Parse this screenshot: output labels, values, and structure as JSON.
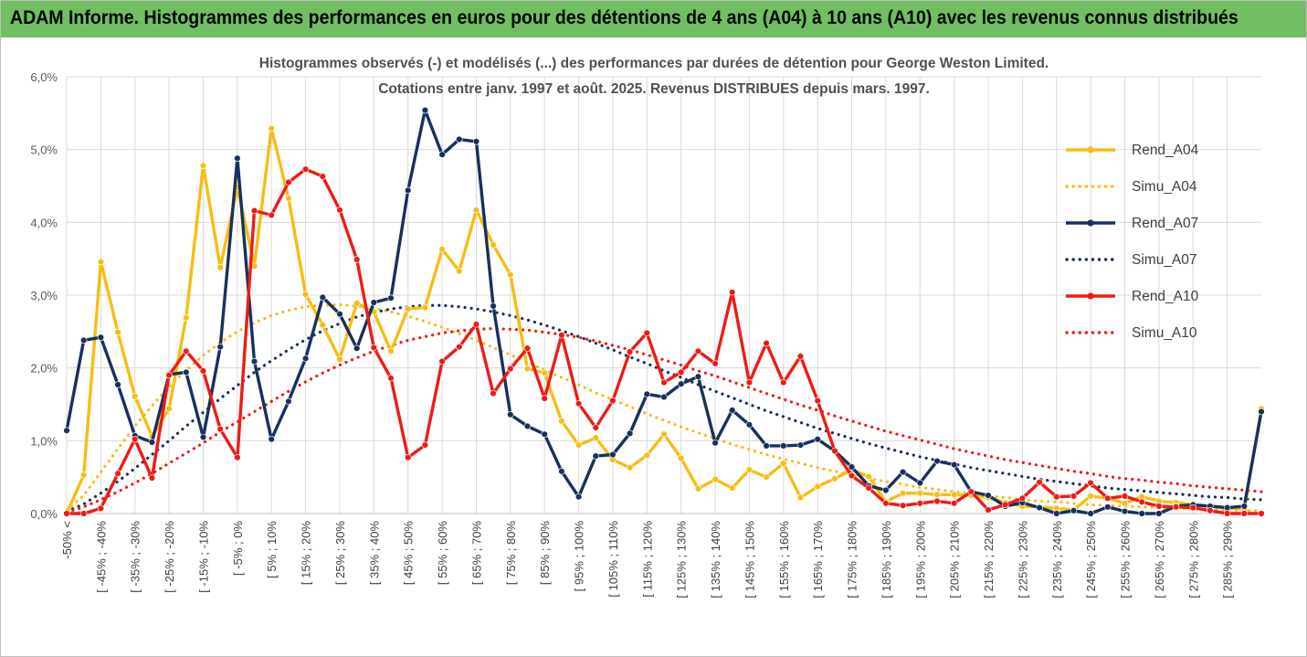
{
  "banner": {
    "title": "ADAM Informe. Histogrammes des performances en euros pour des détentions de 4 ans (A04) à 10 ans (A10) avec les revenus connus distribués"
  },
  "chart_data": {
    "type": "line",
    "title": "Histogrammes observés (-) et modélisés (...) des performances par durées de détention pour George Weston Limited.",
    "subtitle": "Cotations entre janv. 1997 et août. 2025. Revenus DISTRIBUES depuis mars. 1997.",
    "y_ticks": [
      "0,0%",
      "1,0%",
      "2,0%",
      "3,0%",
      "4,0%",
      "5,0%",
      "6,0%"
    ],
    "ylim": [
      0,
      6
    ],
    "x_tick_labels": [
      "-50% <",
      "[ -45% ; -40%",
      "[ -35% ; -30%",
      "[ -25% ; -20%",
      "[ -15% ; -10%",
      "[ -5% ; 0%",
      "[ 5% ; 10%",
      "[ 15% ; 20%",
      "[ 25% ; 30%",
      "[ 35% ; 40%",
      "[ 45% ; 50%",
      "[ 55% ; 60%",
      "[ 65% ; 70%",
      "[ 75% ; 80%",
      "[ 85% ; 90%",
      "[ 95% ; 100%",
      "[ 105% ; 110%",
      "[ 115% ; 120%",
      "[ 125% ; 130%",
      "[ 135% ; 140%",
      "[ 145% ; 150%",
      "[ 155% ; 160%",
      "[ 165% ; 170%",
      "[ 175% ; 180%",
      "[ 185% ; 190%",
      "[ 195% ; 200%",
      "[ 205% ; 210%",
      "[ 215% ; 220%",
      "[ 225% ; 230%",
      "[ 235% ; 240%",
      "[ 245% ; 250%",
      "[ 255% ; 260%",
      "[ 265% ; 270%",
      "[ 275% ; 280%",
      "[ 285% ; 290%"
    ],
    "grid": true,
    "legend_position": "right",
    "series": [
      {
        "name": "Rend_A04",
        "style": "solid-markers",
        "color": "#f7bd14",
        "values": [
          0.0,
          0.53,
          3.46,
          2.49,
          1.61,
          1.06,
          1.44,
          2.69,
          4.78,
          3.38,
          4.48,
          3.4,
          5.29,
          4.33,
          3.01,
          2.59,
          2.12,
          2.89,
          2.77,
          2.23,
          2.81,
          2.83,
          3.63,
          3.33,
          4.17,
          3.69,
          3.28,
          1.99,
          1.93,
          1.27,
          0.94,
          1.04,
          0.74,
          0.63,
          0.8,
          1.09,
          0.76,
          0.34,
          0.47,
          0.35,
          0.6,
          0.5,
          0.69,
          0.22,
          0.37,
          0.48,
          0.6,
          0.51,
          0.16,
          0.28,
          0.28,
          0.26,
          0.26,
          0.25,
          0.22,
          0.15,
          0.1,
          0.09,
          0.07,
          0.05,
          0.24,
          0.21,
          0.14,
          0.23,
          0.17,
          0.15,
          0.12,
          0.1,
          0.08,
          0.06,
          1.44
        ]
      },
      {
        "name": "Simu_A04",
        "style": "dotted",
        "color": "#f7bd14",
        "values": [
          0.05,
          0.25,
          0.57,
          0.89,
          1.2,
          1.48,
          1.74,
          1.97,
          2.17,
          2.35,
          2.5,
          2.62,
          2.72,
          2.79,
          2.84,
          2.86,
          2.87,
          2.85,
          2.82,
          2.77,
          2.71,
          2.64,
          2.56,
          2.47,
          2.38,
          2.28,
          2.18,
          2.08,
          1.97,
          1.87,
          1.77,
          1.66,
          1.56,
          1.47,
          1.37,
          1.28,
          1.19,
          1.11,
          1.03,
          0.95,
          0.88,
          0.81,
          0.75,
          0.69,
          0.63,
          0.58,
          0.53,
          0.48,
          0.44,
          0.4,
          0.36,
          0.33,
          0.3,
          0.27,
          0.24,
          0.22,
          0.19,
          0.17,
          0.16,
          0.14,
          0.12,
          0.11,
          0.1,
          0.09,
          0.08,
          0.07,
          0.06,
          0.05,
          0.05,
          0.04,
          0.04
        ]
      },
      {
        "name": "Rend_A07",
        "style": "solid-markers",
        "color": "#17305f",
        "values": [
          1.14,
          2.38,
          2.42,
          1.77,
          1.07,
          0.98,
          1.91,
          1.94,
          1.05,
          2.29,
          4.88,
          2.09,
          1.02,
          1.54,
          2.13,
          2.97,
          2.74,
          2.27,
          2.9,
          2.96,
          4.44,
          5.54,
          4.93,
          5.14,
          5.11,
          2.85,
          1.36,
          1.2,
          1.09,
          0.58,
          0.23,
          0.79,
          0.81,
          1.1,
          1.64,
          1.6,
          1.78,
          1.88,
          0.97,
          1.42,
          1.22,
          0.93,
          0.93,
          0.94,
          1.02,
          0.86,
          0.64,
          0.38,
          0.32,
          0.57,
          0.42,
          0.72,
          0.67,
          0.3,
          0.25,
          0.1,
          0.15,
          0.08,
          0.0,
          0.04,
          0.0,
          0.09,
          0.03,
          0.0,
          0.0,
          0.1,
          0.12,
          0.1,
          0.08,
          0.1,
          1.4
        ]
      },
      {
        "name": "Simu_A07",
        "style": "dotted",
        "color": "#17305f",
        "values": [
          0.03,
          0.13,
          0.28,
          0.44,
          0.62,
          0.81,
          1.0,
          1.2,
          1.39,
          1.58,
          1.76,
          1.94,
          2.1,
          2.25,
          2.39,
          2.51,
          2.61,
          2.7,
          2.76,
          2.81,
          2.84,
          2.86,
          2.86,
          2.84,
          2.81,
          2.77,
          2.72,
          2.66,
          2.59,
          2.51,
          2.43,
          2.34,
          2.25,
          2.15,
          2.06,
          1.96,
          1.87,
          1.77,
          1.68,
          1.59,
          1.5,
          1.41,
          1.33,
          1.25,
          1.17,
          1.1,
          1.03,
          0.96,
          0.9,
          0.84,
          0.78,
          0.73,
          0.68,
          0.63,
          0.59,
          0.55,
          0.51,
          0.47,
          0.44,
          0.41,
          0.38,
          0.35,
          0.33,
          0.31,
          0.29,
          0.27,
          0.25,
          0.23,
          0.22,
          0.2,
          0.19
        ]
      },
      {
        "name": "Rend_A10",
        "style": "solid-markers",
        "color": "#ee1b15",
        "values": [
          0.0,
          0.0,
          0.07,
          0.55,
          1.02,
          0.49,
          1.9,
          2.23,
          1.96,
          1.16,
          0.77,
          4.16,
          4.1,
          4.55,
          4.73,
          4.63,
          4.17,
          3.49,
          2.28,
          1.86,
          0.77,
          0.94,
          2.09,
          2.29,
          2.6,
          1.65,
          1.99,
          2.27,
          1.58,
          2.45,
          1.51,
          1.18,
          1.55,
          2.22,
          2.48,
          1.8,
          1.94,
          2.23,
          2.06,
          3.04,
          1.8,
          2.34,
          1.8,
          2.16,
          1.55,
          0.86,
          0.52,
          0.35,
          0.14,
          0.11,
          0.14,
          0.17,
          0.14,
          0.3,
          0.05,
          0.12,
          0.21,
          0.43,
          0.23,
          0.24,
          0.42,
          0.21,
          0.24,
          0.16,
          0.1,
          0.09,
          0.08,
          0.04,
          0.0,
          0.0,
          0.0
        ]
      },
      {
        "name": "Simu_A10",
        "style": "dotted",
        "color": "#ee1b15",
        "values": [
          0.02,
          0.09,
          0.19,
          0.3,
          0.42,
          0.55,
          0.69,
          0.83,
          0.97,
          1.12,
          1.26,
          1.4,
          1.54,
          1.68,
          1.81,
          1.93,
          2.04,
          2.14,
          2.23,
          2.31,
          2.38,
          2.43,
          2.48,
          2.51,
          2.53,
          2.54,
          2.53,
          2.52,
          2.49,
          2.46,
          2.42,
          2.37,
          2.31,
          2.25,
          2.18,
          2.11,
          2.04,
          1.96,
          1.89,
          1.81,
          1.73,
          1.65,
          1.57,
          1.49,
          1.42,
          1.34,
          1.27,
          1.2,
          1.13,
          1.07,
          1.01,
          0.95,
          0.89,
          0.84,
          0.79,
          0.74,
          0.7,
          0.66,
          0.62,
          0.58,
          0.55,
          0.51,
          0.48,
          0.46,
          0.43,
          0.41,
          0.38,
          0.36,
          0.34,
          0.32,
          0.3
        ]
      }
    ]
  }
}
